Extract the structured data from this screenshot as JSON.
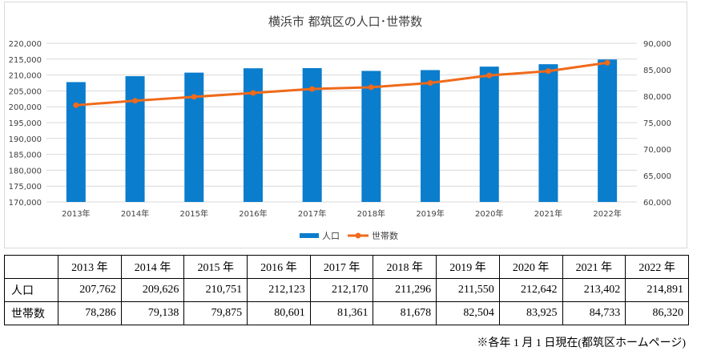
{
  "chart_data": {
    "type": "bar+line",
    "title": "横浜市 都筑区の人口･世帯数",
    "categories": [
      "2013年",
      "2014年",
      "2015年",
      "2016年",
      "2017年",
      "2018年",
      "2019年",
      "2020年",
      "2021年",
      "2022年"
    ],
    "series": [
      {
        "name": "人口",
        "type": "bar",
        "axis": "left",
        "color": "#0a7dcd",
        "values": [
          207762,
          209626,
          210751,
          212123,
          212170,
          211296,
          211550,
          212642,
          213402,
          214891
        ]
      },
      {
        "name": "世帯数",
        "type": "line",
        "axis": "right",
        "color": "#ef6a1a",
        "values": [
          78286,
          79138,
          79875,
          80601,
          81361,
          81678,
          82504,
          83925,
          84733,
          86320
        ]
      }
    ],
    "y_left": {
      "min": 170000,
      "max": 220000,
      "step": 5000,
      "ticks": [
        "170,000",
        "175,000",
        "180,000",
        "185,000",
        "190,000",
        "195,000",
        "200,000",
        "205,000",
        "210,000",
        "215,000",
        "220,000"
      ]
    },
    "y_right": {
      "min": 60000,
      "max": 90000,
      "step": 5000,
      "ticks": [
        "60,000",
        "65,000",
        "70,000",
        "75,000",
        "80,000",
        "85,000",
        "90,000"
      ]
    },
    "grid": true,
    "legend_position": "bottom-center"
  },
  "table": {
    "years": [
      "2013 年",
      "2014 年",
      "2015 年",
      "2016 年",
      "2017 年",
      "2018 年",
      "2019 年",
      "2020 年",
      "2021 年",
      "2022 年"
    ],
    "rows": [
      {
        "label": "人口",
        "values": [
          "207,762",
          "209,626",
          "210,751",
          "212,123",
          "212,170",
          "211,296",
          "211,550",
          "212,642",
          "213,402",
          "214,891"
        ]
      },
      {
        "label": "世帯数",
        "values": [
          "78,286",
          "79,138",
          "79,875",
          "80,601",
          "81,361",
          "81,678",
          "82,504",
          "83,925",
          "84,733",
          "86,320"
        ]
      }
    ]
  },
  "note": "※各年 1 月 1 日現在(都筑区ホームページ)"
}
